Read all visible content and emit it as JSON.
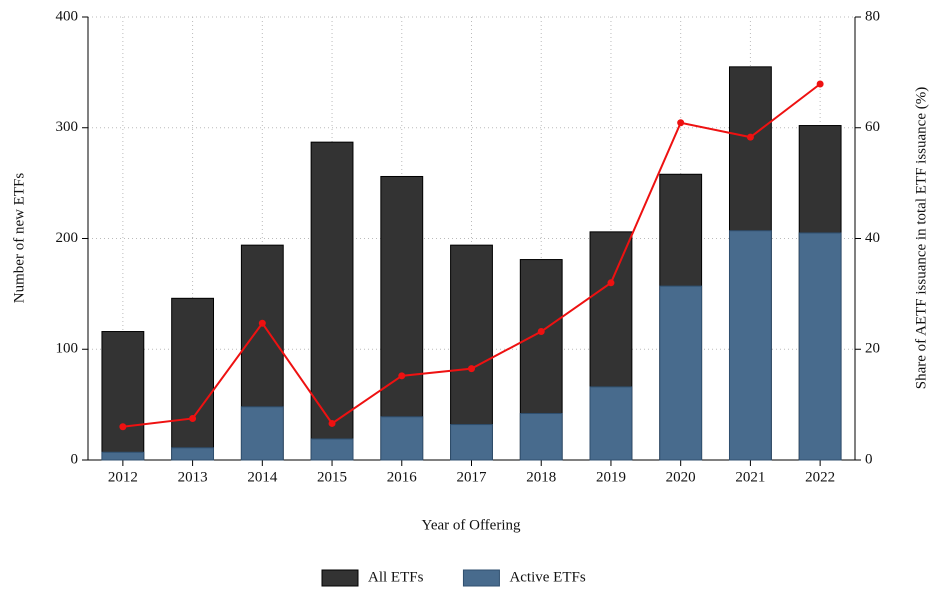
{
  "chart_data": {
    "type": "bar",
    "x_label": "Year of Offering",
    "y_label": "Number of new ETFs",
    "y2_label": "Share of AETF issuance in total ETF issuance (%)",
    "categories": [
      "2012",
      "2013",
      "2014",
      "2015",
      "2016",
      "2017",
      "2018",
      "2019",
      "2020",
      "2021",
      "2022"
    ],
    "series": [
      {
        "name": "All ETFs",
        "color": "#333333",
        "values": [
          116,
          146,
          194,
          287,
          256,
          194,
          181,
          206,
          258,
          355,
          302
        ]
      },
      {
        "name": "Active ETFs",
        "color": "#486b8d",
        "values": [
          7,
          11,
          48,
          19,
          39,
          32,
          42,
          66,
          157,
          207,
          205
        ]
      },
      {
        "type": "line",
        "axis": "y2",
        "color": "#ee1111",
        "values": [
          6.0,
          7.5,
          24.7,
          6.6,
          15.2,
          16.5,
          23.2,
          32.0,
          60.9,
          58.3,
          67.9
        ]
      }
    ],
    "ylim": [
      0,
      400
    ],
    "yticks": [
      0,
      100,
      200,
      300,
      400
    ],
    "y2lim": [
      0,
      80
    ],
    "y2ticks": [
      0,
      20,
      40,
      60,
      80
    ],
    "grid": true,
    "legend": "bottom"
  }
}
